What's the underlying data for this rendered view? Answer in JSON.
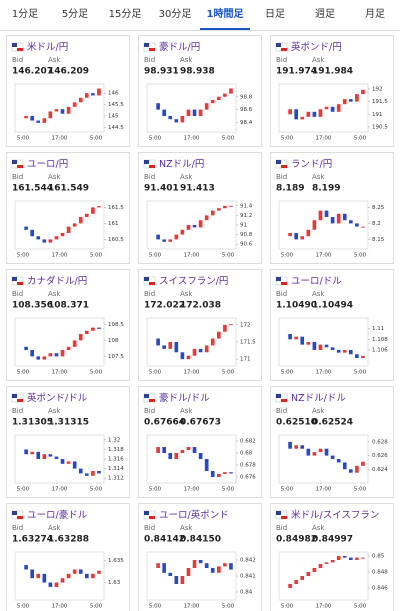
{
  "tabs": [
    "1分足",
    "5分足",
    "15分足",
    "30分足",
    "1時間足",
    "日足",
    "週足",
    "月足"
  ],
  "active_tab": 4,
  "bid_label": "Bid",
  "ask_label": "Ask",
  "x_labels": [
    "5:00",
    "17:00",
    "5:00"
  ],
  "cards": [
    {
      "pair": "米ドル/円",
      "bid": "146.207",
      "ask": "146.209",
      "chart": {
        "ylim": [
          144.3,
          146.4
        ],
        "yticks": [
          146,
          145.5,
          145,
          144.5
        ],
        "values": [
          144.9,
          145.0,
          144.8,
          144.7,
          144.9,
          145.2,
          145.3,
          145.1,
          145.4,
          145.6,
          145.8,
          146.0,
          145.9,
          146.2
        ]
      }
    },
    {
      "pair": "豪ドル/円",
      "bid": "98.931",
      "ask": "98.938",
      "chart": {
        "ylim": [
          98.25,
          99.0
        ],
        "yticks": [
          98.8,
          98.6,
          98.4
        ],
        "values": [
          98.7,
          98.6,
          98.5,
          98.45,
          98.4,
          98.5,
          98.6,
          98.5,
          98.6,
          98.7,
          98.75,
          98.8,
          98.85,
          98.93
        ]
      }
    },
    {
      "pair": "英ポンド/円",
      "bid": "191.974",
      "ask": "191.984",
      "chart": {
        "ylim": [
          190.3,
          192.2
        ],
        "yticks": [
          192,
          191.5,
          191,
          190.5
        ],
        "values": [
          191.0,
          191.2,
          190.8,
          190.9,
          191.1,
          190.9,
          191.2,
          191.3,
          191.1,
          191.4,
          191.6,
          191.5,
          191.8,
          191.97
        ]
      }
    },
    {
      "pair": "ユーロ/円",
      "bid": "161.544",
      "ask": "161.549",
      "chart": {
        "ylim": [
          160.2,
          161.7
        ],
        "yticks": [
          161.5,
          161,
          160.5
        ],
        "values": [
          160.9,
          160.8,
          160.6,
          160.5,
          160.4,
          160.5,
          160.6,
          160.7,
          160.9,
          161.0,
          161.2,
          161.3,
          161.5,
          161.54
        ]
      }
    },
    {
      "pair": "NZドル/円",
      "bid": "91.401",
      "ask": "91.413",
      "chart": {
        "ylim": [
          90.5,
          91.5
        ],
        "yticks": [
          91.4,
          91.2,
          91,
          90.8,
          90.6
        ],
        "values": [
          90.8,
          90.7,
          90.65,
          90.7,
          90.8,
          90.9,
          91.0,
          90.95,
          91.1,
          91.2,
          91.3,
          91.35,
          91.4,
          91.4
        ]
      }
    },
    {
      "pair": "ランド/円",
      "bid": "8.189",
      "ask": "8.199",
      "chart": {
        "ylim": [
          8.12,
          8.27
        ],
        "yticks": [
          8.25,
          8.2,
          8.15
        ],
        "values": [
          8.16,
          8.17,
          8.15,
          8.16,
          8.18,
          8.21,
          8.24,
          8.22,
          8.2,
          8.23,
          8.21,
          8.2,
          8.19,
          8.19
        ]
      }
    },
    {
      "pair": "カナダドル/円",
      "bid": "108.356",
      "ask": "108.371",
      "chart": {
        "ylim": [
          107.2,
          108.7
        ],
        "yticks": [
          108.5,
          108,
          107.5
        ],
        "values": [
          107.8,
          107.7,
          107.5,
          107.4,
          107.5,
          107.6,
          107.5,
          107.7,
          107.8,
          108.0,
          108.2,
          108.3,
          108.4,
          108.36
        ]
      }
    },
    {
      "pair": "スイスフラン/円",
      "bid": "172.022",
      "ask": "172.038",
      "chart": {
        "ylim": [
          170.8,
          172.2
        ],
        "yticks": [
          172,
          171.5,
          171
        ],
        "values": [
          171.6,
          171.4,
          171.3,
          171.5,
          171.2,
          171.0,
          171.1,
          171.3,
          171.2,
          171.4,
          171.6,
          171.8,
          172.0,
          172.02
        ]
      }
    },
    {
      "pair": "ユーロ/ドル",
      "bid": "1.10490",
      "ask": "1.10494",
      "chart": {
        "ylim": [
          1.103,
          1.112
        ],
        "yticks": [
          1.11,
          1.108,
          1.106
        ],
        "values": [
          1.109,
          1.108,
          1.1085,
          1.107,
          1.1075,
          1.106,
          1.107,
          1.1065,
          1.106,
          1.1055,
          1.106,
          1.1052,
          1.1045,
          1.1049
        ]
      }
    },
    {
      "pair": "英ポンド/ドル",
      "bid": "1.31305",
      "ask": "1.31315",
      "chart": {
        "ylim": [
          1.311,
          1.321
        ],
        "yticks": [
          1.32,
          1.318,
          1.316,
          1.314,
          1.312
        ],
        "values": [
          1.318,
          1.317,
          1.3175,
          1.316,
          1.317,
          1.3165,
          1.316,
          1.315,
          1.3155,
          1.314,
          1.313,
          1.3125,
          1.3135,
          1.313
        ]
      }
    },
    {
      "pair": "豪ドル/ドル",
      "bid": "0.67664",
      "ask": "0.67673",
      "chart": {
        "ylim": [
          0.675,
          0.683
        ],
        "yticks": [
          0.682,
          0.68,
          0.678,
          0.676
        ],
        "values": [
          0.68,
          0.681,
          0.68,
          0.679,
          0.68,
          0.6805,
          0.681,
          0.68,
          0.679,
          0.677,
          0.676,
          0.6765,
          0.6768,
          0.6766
        ]
      }
    },
    {
      "pair": "NZドル/ドル",
      "bid": "0.62510",
      "ask": "0.62524",
      "chart": {
        "ylim": [
          0.622,
          0.629
        ],
        "yticks": [
          0.628,
          0.626,
          0.624
        ],
        "values": [
          0.628,
          0.627,
          0.6275,
          0.627,
          0.626,
          0.6265,
          0.627,
          0.626,
          0.6255,
          0.625,
          0.624,
          0.6235,
          0.6245,
          0.6251
        ]
      }
    },
    {
      "pair": "ユーロ/豪ドル",
      "bid": "1.63274",
      "ask": "1.63288",
      "chart": {
        "ylim": [
          1.626,
          1.637
        ],
        "yticks": [
          1.635,
          1.63
        ],
        "values": [
          1.634,
          1.633,
          1.631,
          1.632,
          1.63,
          1.629,
          1.63,
          1.631,
          1.632,
          1.633,
          1.632,
          1.631,
          1.632,
          1.6327
        ]
      }
    },
    {
      "pair": "ユーロ/英ポンド",
      "bid": "0.84142",
      "ask": "0.84150",
      "chart": {
        "ylim": [
          0.8395,
          0.8425
        ],
        "yticks": [
          0.842,
          0.841,
          0.84
        ],
        "values": [
          0.8415,
          0.8418,
          0.8412,
          0.841,
          0.8405,
          0.841,
          0.8415,
          0.842,
          0.8418,
          0.8415,
          0.8412,
          0.8416,
          0.8418,
          0.8414
        ]
      }
    },
    {
      "pair": "米ドル/スイスフラン",
      "bid": "0.84982",
      "ask": "0.84997",
      "chart": {
        "ylim": [
          0.8445,
          0.8505
        ],
        "yticks": [
          0.85,
          0.848,
          0.846
        ],
        "values": [
          0.846,
          0.8465,
          0.847,
          0.8475,
          0.848,
          0.8485,
          0.849,
          0.8492,
          0.8495,
          0.85,
          0.8498,
          0.8495,
          0.8498,
          0.8498
        ]
      }
    }
  ]
}
